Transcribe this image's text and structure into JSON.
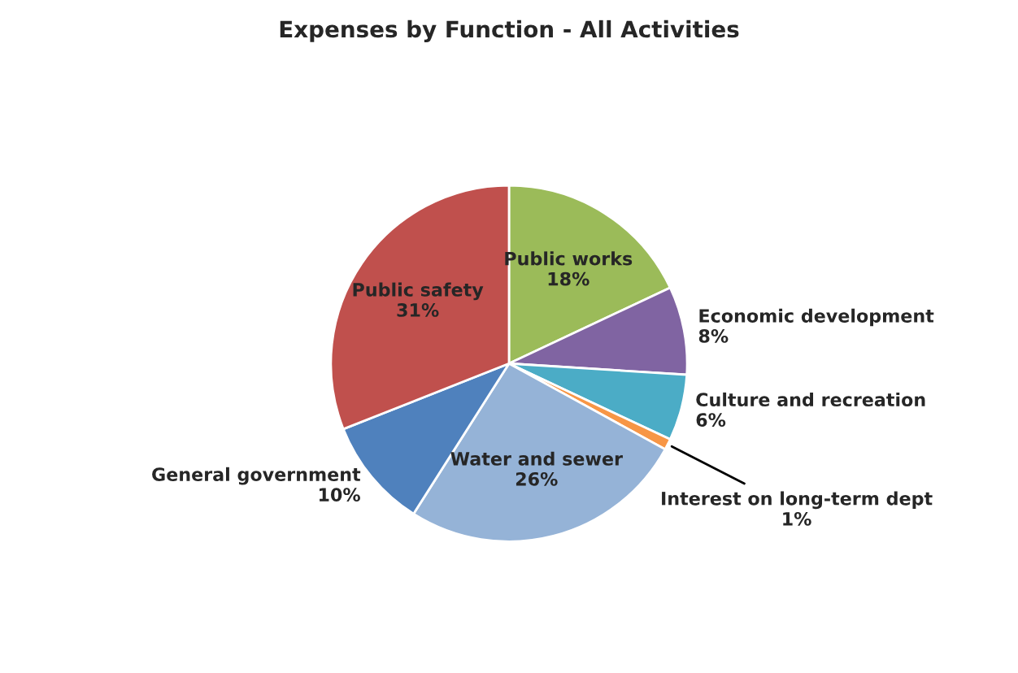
{
  "chart_data": {
    "type": "pie",
    "title": "Expenses by Function - All Activities",
    "categories": [
      "Public works",
      "Economic development",
      "Culture and recreation",
      "Interest on long-term dept",
      "Water and sewer",
      "General government",
      "Public safety"
    ],
    "values": [
      18,
      8,
      6,
      1,
      26,
      10,
      31
    ],
    "value_labels": [
      "18%",
      "8%",
      "6%",
      "1%",
      "26%",
      "10%",
      "31%"
    ],
    "colors": [
      "#9bbb59",
      "#8064a2",
      "#4bacc6",
      "#f79646",
      "#95b3d7",
      "#4f81bd",
      "#c0504d"
    ]
  }
}
